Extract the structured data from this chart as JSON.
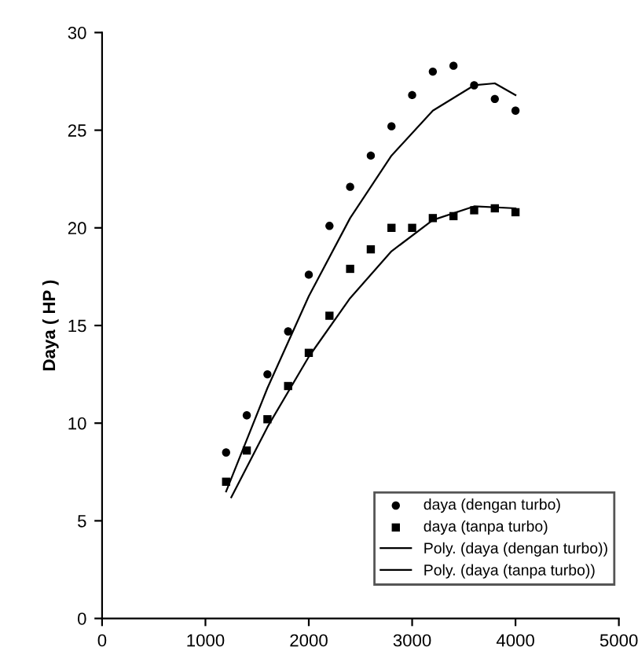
{
  "chart_data": {
    "type": "scatter",
    "ylabel": "Daya ( HP )",
    "xlim": [
      0,
      5000
    ],
    "xticks": [
      0,
      1000,
      2000,
      3000,
      4000,
      5000
    ],
    "ylim": [
      0,
      30
    ],
    "yticks": [
      0,
      5,
      10,
      15,
      20,
      25,
      30
    ],
    "grid": false,
    "legend": "bottom right",
    "series": [
      {
        "name": "daya (dengan turbo)",
        "marker": "circle",
        "color": "#000000",
        "x": [
          1200,
          1400,
          1600,
          1800,
          2000,
          2200,
          2400,
          2600,
          2800,
          3000,
          3200,
          3400,
          3600,
          3800,
          4000
        ],
        "values": [
          8.5,
          10.4,
          12.5,
          14.7,
          17.6,
          20.1,
          22.1,
          23.7,
          25.2,
          26.8,
          28.0,
          28.3,
          27.3,
          26.6,
          26.0
        ]
      },
      {
        "name": "daya (tanpa turbo)",
        "marker": "square",
        "color": "#000000",
        "x": [
          1200,
          1400,
          1600,
          1800,
          2000,
          2200,
          2400,
          2600,
          2800,
          3000,
          3200,
          3400,
          3600,
          3800,
          4000
        ],
        "values": [
          7.0,
          8.6,
          10.2,
          11.9,
          13.6,
          15.5,
          17.9,
          18.9,
          20.0,
          20.0,
          20.5,
          20.6,
          20.9,
          21.0,
          20.8
        ]
      },
      {
        "name": "Poly. (daya (dengan turbo))",
        "type": "line",
        "marker": "none",
        "color": "#000000",
        "x": [
          1200,
          1600,
          2000,
          2400,
          2800,
          3200,
          3600,
          3800,
          4000
        ],
        "values": [
          6.5,
          11.8,
          16.5,
          20.5,
          23.7,
          26.0,
          27.3,
          27.4,
          26.8
        ]
      },
      {
        "name": "Poly. (daya (tanpa turbo))",
        "type": "line",
        "marker": "none",
        "color": "#000000",
        "x": [
          1250,
          1600,
          2000,
          2400,
          2800,
          3200,
          3600,
          4000
        ],
        "values": [
          6.2,
          9.8,
          13.4,
          16.4,
          18.8,
          20.4,
          21.1,
          21.0
        ]
      }
    ]
  }
}
